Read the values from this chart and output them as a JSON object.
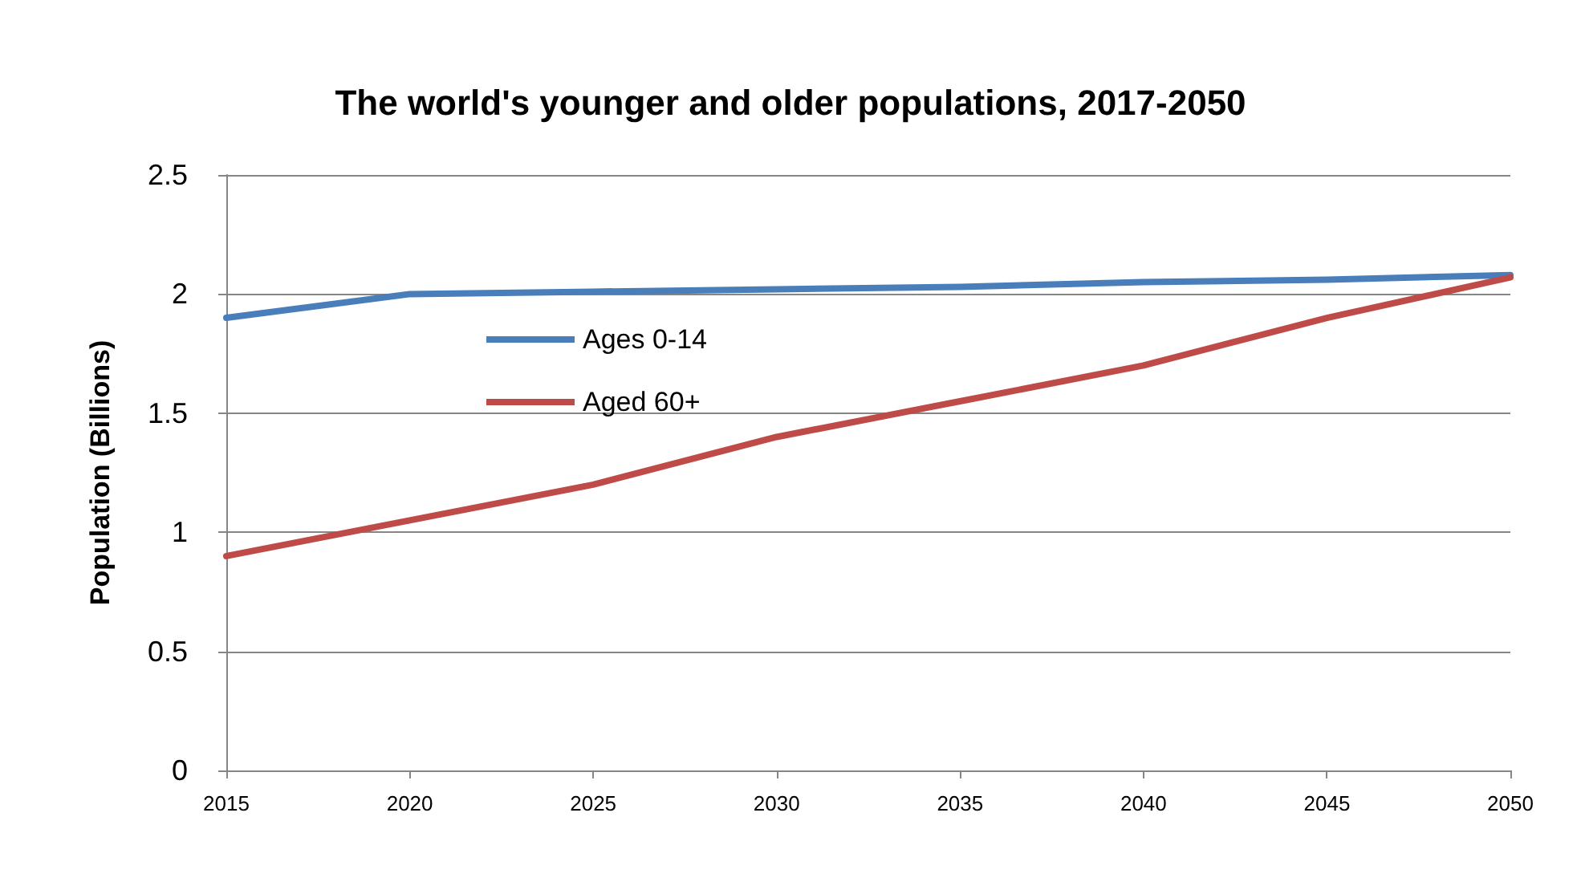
{
  "chart_data": {
    "type": "line",
    "title": "The world's younger and older populations, 2017-2050",
    "ylabel": "Population (Billions)",
    "categories": [
      "2015",
      "2020",
      "2025",
      "2030",
      "2035",
      "2040",
      "2045",
      "2050"
    ],
    "series": [
      {
        "name": "Ages 0-14",
        "color": "#4a7ebb",
        "values": [
          1.9,
          2.0,
          2.01,
          2.02,
          2.03,
          2.05,
          2.06,
          2.08
        ]
      },
      {
        "name": "Aged 60+",
        "color": "#be4b48",
        "values": [
          0.9,
          1.05,
          1.2,
          1.4,
          1.55,
          1.7,
          1.9,
          2.07
        ]
      }
    ],
    "ylim": [
      0,
      2.5
    ],
    "yticks": [
      0,
      0.5,
      1,
      1.5,
      2,
      2.5
    ],
    "grid": "y",
    "legend": "top left",
    "marker": "none",
    "line_style": "solid"
  }
}
